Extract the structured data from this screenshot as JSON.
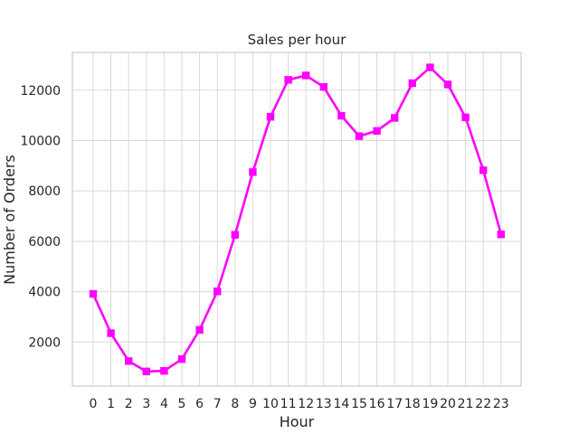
{
  "chart_data": {
    "type": "line",
    "title": "Sales per hour",
    "xlabel": "Hour",
    "ylabel": "Number of Orders",
    "categories": [
      "0",
      "1",
      "2",
      "3",
      "4",
      "5",
      "6",
      "7",
      "8",
      "9",
      "10",
      "11",
      "12",
      "13",
      "14",
      "15",
      "16",
      "17",
      "18",
      "19",
      "20",
      "21",
      "22",
      "23"
    ],
    "series": [
      {
        "values": [
          3910,
          2350,
          1243,
          831,
          854,
          1321,
          2482,
          4011,
          6256,
          8748,
          10944,
          12411,
          12587,
          12129,
          10984,
          10175,
          10384,
          10899,
          12280,
          12905,
          12228,
          10921,
          8822,
          6275
        ],
        "color": "#ff00ff"
      }
    ],
    "y_ticks": [
      2000,
      4000,
      6000,
      8000,
      10000,
      12000
    ],
    "ylim": [
      250,
      13500
    ],
    "grid": true,
    "colors": {
      "line": "#ff00ff",
      "grid": "#d9d9d9",
      "frame": "#cccccc",
      "text": "#262626"
    }
  }
}
